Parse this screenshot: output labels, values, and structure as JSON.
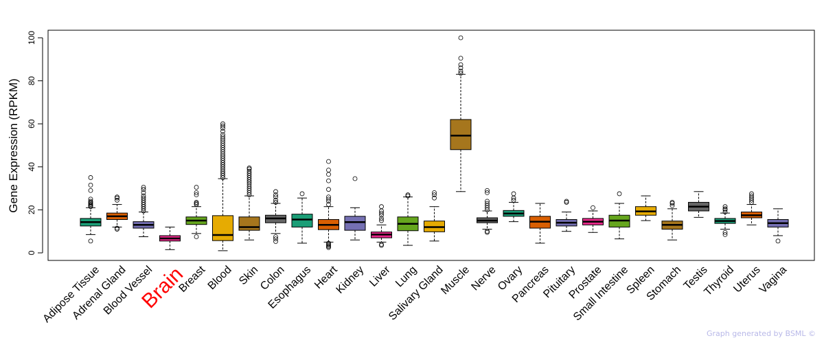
{
  "chart_data": {
    "type": "boxplot",
    "ylabel": "Gene Expression (RPKM)",
    "xlabel": "",
    "ylim": [
      0,
      100
    ],
    "yticks": [
      0,
      20,
      40,
      60,
      80,
      100
    ],
    "highlight": "Brain",
    "highlight_color": "#ff0000",
    "series": [
      {
        "name": "Adipose Tissue",
        "color": "#1b9e77",
        "min": 8.5,
        "q1": 12.5,
        "median": 14.3,
        "q3": 16,
        "max": 21,
        "outliers": [
          5.5,
          21.5,
          22,
          22.5,
          23,
          23.5,
          24,
          25,
          29,
          31.5,
          35
        ]
      },
      {
        "name": "Adrenal Gland",
        "color": "#d95f02",
        "min": 12,
        "q1": 15.5,
        "median": 17,
        "q3": 18.5,
        "max": 22.5,
        "outliers": [
          11,
          11.5,
          24.5,
          25.5,
          26
        ]
      },
      {
        "name": "Blood Vessel",
        "color": "#7570b3",
        "min": 7.5,
        "q1": 11.5,
        "median": 13,
        "q3": 14.5,
        "max": 19,
        "outliers": [
          19.5,
          20.5,
          21.5,
          22.5,
          23.5,
          24.5,
          25.5,
          26.5,
          28,
          29.5,
          30.5
        ]
      },
      {
        "name": "Brain",
        "color": "#e7298a",
        "min": 1.5,
        "q1": 5.5,
        "median": 6.7,
        "q3": 8,
        "max": 12,
        "outliers": []
      },
      {
        "name": "Breast",
        "color": "#66a61e",
        "min": 9,
        "q1": 13.2,
        "median": 15,
        "q3": 16.7,
        "max": 21.5,
        "outliers": [
          7.5,
          22.5,
          23,
          23.5,
          27,
          28,
          30.5
        ]
      },
      {
        "name": "Blood",
        "color": "#e6ab02",
        "min": 1,
        "q1": 5.7,
        "median": 8.3,
        "q3": 17.3,
        "max": 34.5,
        "outliers": [
          35,
          36,
          37,
          38,
          39,
          40,
          41,
          42,
          43,
          44,
          45,
          46,
          47,
          48,
          49,
          50,
          51,
          52,
          53,
          54,
          55,
          56.5,
          58,
          59,
          60
        ]
      },
      {
        "name": "Skin",
        "color": "#a6761d",
        "min": 6,
        "q1": 10.5,
        "median": 12,
        "q3": 16.7,
        "max": 26.5,
        "outliers": [
          27,
          28,
          29,
          30,
          31,
          32,
          33,
          34,
          35,
          36,
          37,
          38,
          39,
          39.5
        ]
      },
      {
        "name": "Colon",
        "color": "#666666",
        "min": 9,
        "q1": 14,
        "median": 16,
        "q3": 17.5,
        "max": 23,
        "outliers": [
          5.3,
          6.5,
          7.5,
          23.5,
          24.5,
          26,
          27,
          28.5
        ]
      },
      {
        "name": "Esophagus",
        "color": "#1b9e77",
        "min": 4.5,
        "q1": 12,
        "median": 15.5,
        "q3": 18,
        "max": 25.5,
        "outliers": [
          27.5
        ]
      },
      {
        "name": "Heart",
        "color": "#d95f02",
        "min": 5,
        "q1": 10.8,
        "median": 13,
        "q3": 15.5,
        "max": 21.5,
        "outliers": [
          2.5,
          3,
          3.5,
          4,
          4.5,
          22.5,
          24,
          25,
          26,
          29.5,
          33.5,
          36.5,
          38.5,
          42.5
        ]
      },
      {
        "name": "Kidney",
        "color": "#7570b3",
        "min": 6,
        "q1": 10.5,
        "median": 14.3,
        "q3": 17,
        "max": 21,
        "outliers": [
          34.5
        ]
      },
      {
        "name": "Liver",
        "color": "#e7298a",
        "min": 5,
        "q1": 7,
        "median": 8.5,
        "q3": 9.7,
        "max": 13,
        "outliers": [
          3.5,
          4,
          15,
          16,
          17.5,
          18.5,
          19.5,
          21.5
        ]
      },
      {
        "name": "Lung",
        "color": "#66a61e",
        "min": 3.5,
        "q1": 10.3,
        "median": 13.5,
        "q3": 16.7,
        "max": 26,
        "outliers": [
          26.5,
          27
        ]
      },
      {
        "name": "Salivary Gland",
        "color": "#e6ab02",
        "min": 5.5,
        "q1": 9.8,
        "median": 12,
        "q3": 14.8,
        "max": 21.5,
        "outliers": [
          25.5,
          27,
          28
        ]
      },
      {
        "name": "Muscle",
        "color": "#a6761d",
        "min": 28.5,
        "q1": 48,
        "median": 54.5,
        "q3": 62,
        "max": 83,
        "outliers": [
          83.5,
          84.5,
          86,
          87.5,
          90.5,
          100
        ]
      },
      {
        "name": "Nerve",
        "color": "#666666",
        "min": 11,
        "q1": 14,
        "median": 15,
        "q3": 16.3,
        "max": 19.5,
        "outliers": [
          9.5,
          10,
          20,
          21,
          22,
          23,
          24,
          28,
          29
        ]
      },
      {
        "name": "Ovary",
        "color": "#1b9e77",
        "min": 14.5,
        "q1": 17,
        "median": 18.3,
        "q3": 19.7,
        "max": 23.5,
        "outliers": [
          24.5,
          25.5,
          27.5
        ]
      },
      {
        "name": "Pancreas",
        "color": "#d95f02",
        "min": 4.5,
        "q1": 11.5,
        "median": 14.5,
        "q3": 17,
        "max": 23,
        "outliers": []
      },
      {
        "name": "Pituitary",
        "color": "#7570b3",
        "min": 10,
        "q1": 12.5,
        "median": 14,
        "q3": 15.5,
        "max": 19,
        "outliers": [
          23.5,
          24
        ]
      },
      {
        "name": "Prostate",
        "color": "#e7298a",
        "min": 9.5,
        "q1": 13,
        "median": 14.5,
        "q3": 16,
        "max": 19.5,
        "outliers": [
          21
        ]
      },
      {
        "name": "Small Intestine",
        "color": "#66a61e",
        "min": 6.5,
        "q1": 12,
        "median": 15,
        "q3": 17.5,
        "max": 23,
        "outliers": [
          27.5
        ]
      },
      {
        "name": "Spleen",
        "color": "#e6ab02",
        "min": 15,
        "q1": 17.5,
        "median": 19.3,
        "q3": 21.5,
        "max": 26.5,
        "outliers": []
      },
      {
        "name": "Stomach",
        "color": "#a6761d",
        "min": 6,
        "q1": 11,
        "median": 13,
        "q3": 14.8,
        "max": 20.5,
        "outliers": [
          22,
          23,
          23.5
        ]
      },
      {
        "name": "Testis",
        "color": "#666666",
        "min": 16.5,
        "q1": 19.5,
        "median": 21.5,
        "q3": 23.5,
        "max": 28.5,
        "outliers": []
      },
      {
        "name": "Thyroid",
        "color": "#1b9e77",
        "min": 11,
        "q1": 13.7,
        "median": 14.8,
        "q3": 16,
        "max": 18.5,
        "outliers": [
          8.5,
          9.5,
          19,
          20,
          20.5,
          21.5
        ]
      },
      {
        "name": "Uterus",
        "color": "#d95f02",
        "min": 13,
        "q1": 16.3,
        "median": 17.5,
        "q3": 19,
        "max": 22.5,
        "outliers": [
          23.5,
          24.5,
          25.5,
          26.5,
          27.5
        ]
      },
      {
        "name": "Vagina",
        "color": "#7570b3",
        "min": 8,
        "q1": 12,
        "median": 13.8,
        "q3": 15.5,
        "max": 20.5,
        "outliers": [
          5.5
        ]
      }
    ]
  },
  "footer": {
    "credit": "Graph generated by BSML ©"
  }
}
